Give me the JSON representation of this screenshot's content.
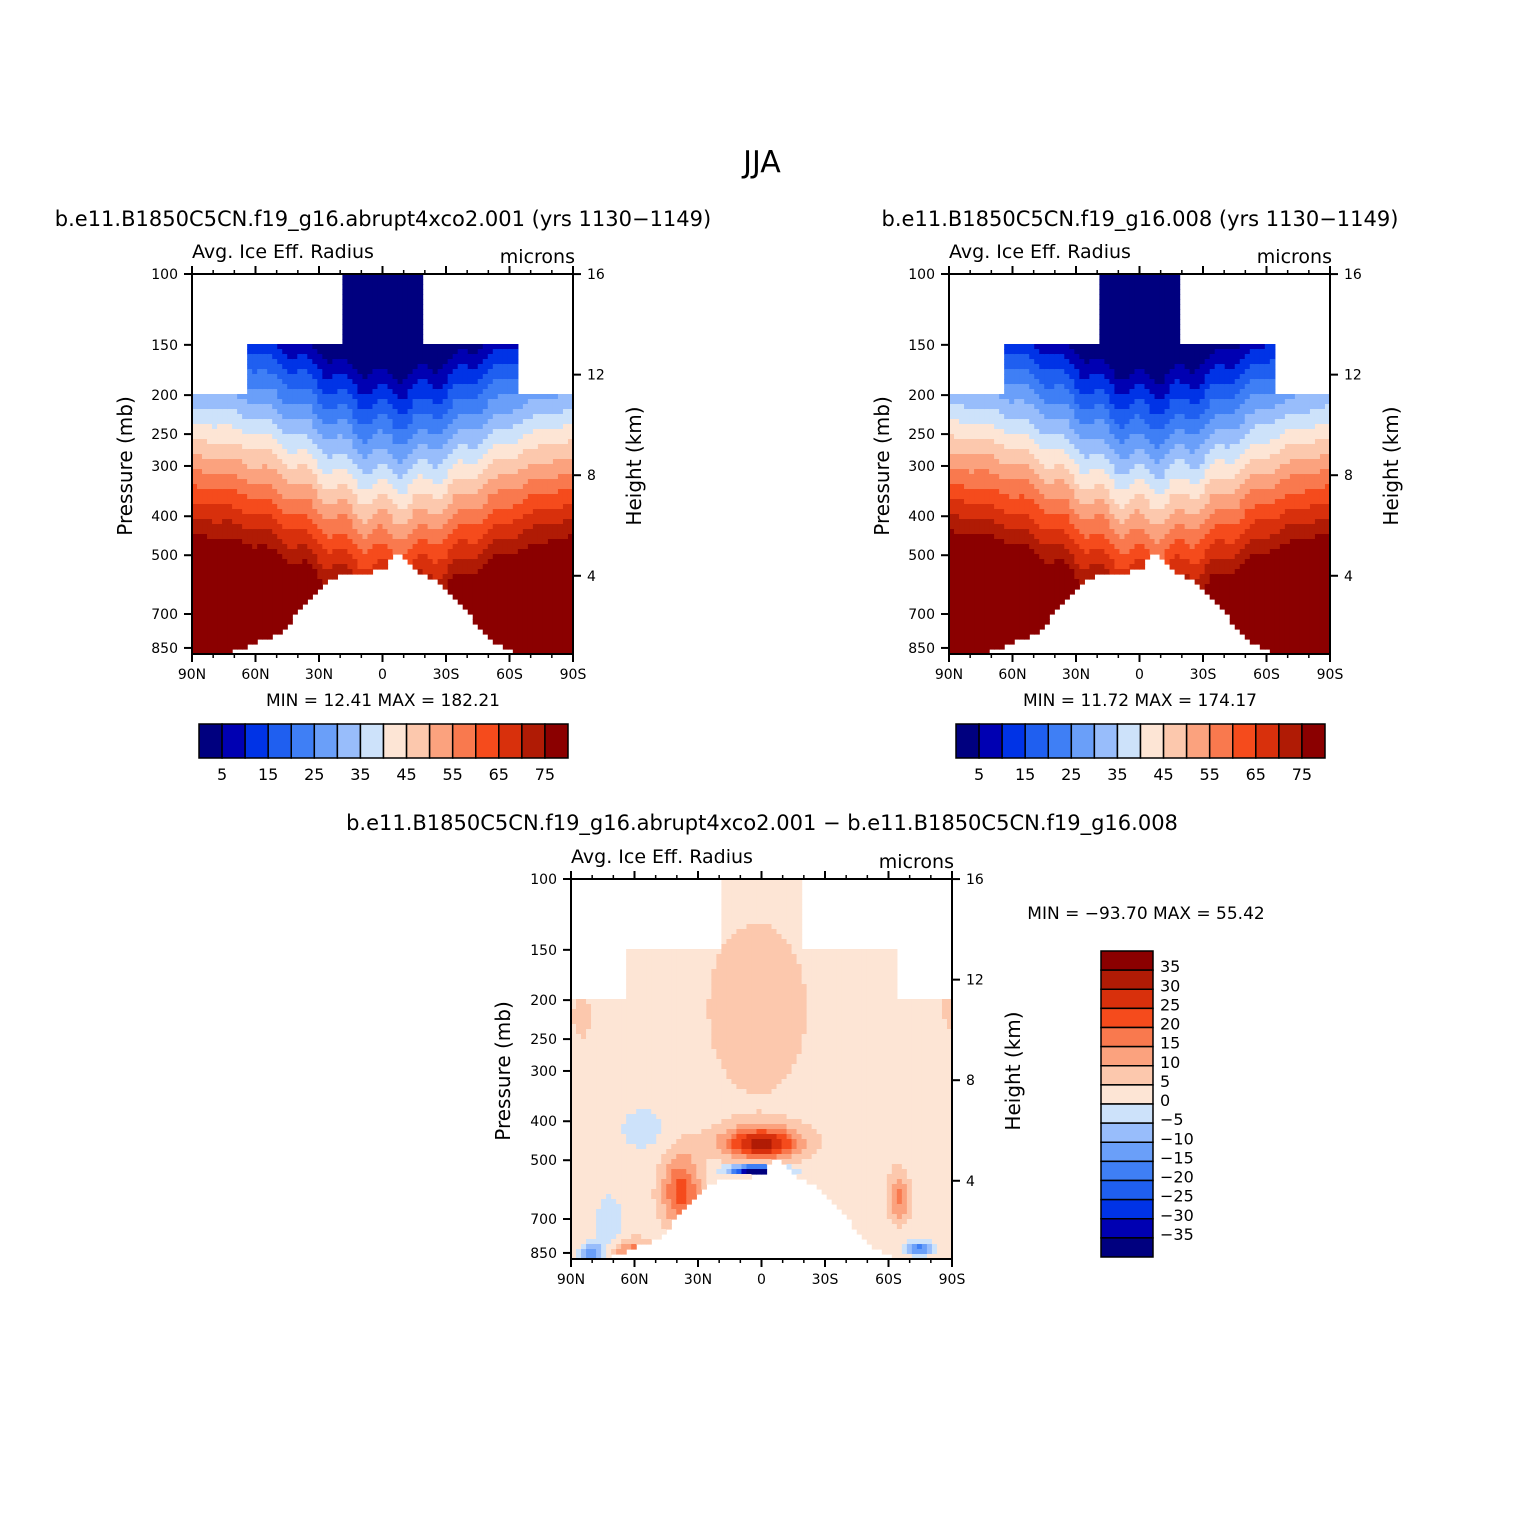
{
  "figure": {
    "title": "JJA",
    "colormap": [
      "#00007f",
      "#0000b2",
      "#0033e6",
      "#1f5ff0",
      "#3f7ff5",
      "#6a9ff9",
      "#98bdfb",
      "#cde2fa",
      "#fde5d5",
      "#fcc8ad",
      "#fba27e",
      "#f9794e",
      "#f54b1c",
      "#d8300c",
      "#b01b05",
      "#8b0000"
    ]
  },
  "chart_data": [
    {
      "type": "heatmap",
      "id": "case1",
      "header": "b.e11.B1850C5CN.f19_g16.abrupt4xco2.001 (yrs 1130−1149)",
      "title": "Avg. Ice Eff. Radius",
      "units": "microns",
      "ylabel": "Pressure (mb)",
      "ylabel_right": "Height (km)",
      "x_ticks": [
        "90N",
        "60N",
        "30N",
        "0",
        "30S",
        "60S",
        "90S"
      ],
      "y_ticks": [
        "100",
        "150",
        "200",
        "250",
        "300",
        "400",
        "500",
        "700",
        "850"
      ],
      "y_right_ticks": [
        "16",
        "12",
        "8",
        "4"
      ],
      "minmax": "MIN =   12.41   MAX =  182.21",
      "colorbar_labels": [
        "5",
        "15",
        "25",
        "35",
        "45",
        "55",
        "65",
        "75"
      ],
      "levels": [
        5,
        10,
        15,
        20,
        25,
        30,
        35,
        40,
        45,
        50,
        55,
        60,
        65,
        70,
        75
      ],
      "min": 12.41,
      "max": 182.21
    },
    {
      "type": "heatmap",
      "id": "case2",
      "header": "b.e11.B1850C5CN.f19_g16.008 (yrs 1130−1149)",
      "title": "Avg. Ice Eff. Radius",
      "units": "microns",
      "ylabel": "Pressure (mb)",
      "ylabel_right": "Height (km)",
      "x_ticks": [
        "90N",
        "60N",
        "30N",
        "0",
        "30S",
        "60S",
        "90S"
      ],
      "y_ticks": [
        "100",
        "150",
        "200",
        "250",
        "300",
        "400",
        "500",
        "700",
        "850"
      ],
      "y_right_ticks": [
        "16",
        "12",
        "8",
        "4"
      ],
      "minmax": "MIN =   11.72   MAX =  174.17",
      "colorbar_labels": [
        "5",
        "15",
        "25",
        "35",
        "45",
        "55",
        "65",
        "75"
      ],
      "levels": [
        5,
        10,
        15,
        20,
        25,
        30,
        35,
        40,
        45,
        50,
        55,
        60,
        65,
        70,
        75
      ],
      "min": 11.72,
      "max": 174.17
    },
    {
      "type": "heatmap",
      "id": "diff",
      "header": "b.e11.B1850C5CN.f19_g16.abrupt4xco2.001 − b.e11.B1850C5CN.f19_g16.008",
      "title": "Avg. Ice Eff. Radius",
      "units": "microns",
      "ylabel": "Pressure (mb)",
      "ylabel_right": "Height (km)",
      "x_ticks": [
        "90N",
        "60N",
        "30N",
        "0",
        "30S",
        "60S",
        "90S"
      ],
      "y_ticks": [
        "100",
        "150",
        "200",
        "250",
        "300",
        "400",
        "500",
        "700",
        "850"
      ],
      "y_right_ticks": [
        "16",
        "12",
        "8",
        "4"
      ],
      "minmax": "MIN = −93.70   MAX =   55.42",
      "colorbar_labels": [
        "35",
        "30",
        "25",
        "20",
        "15",
        "10",
        "5",
        "0",
        "−5",
        "−10",
        "−15",
        "−20",
        "−25",
        "−30",
        "−35"
      ],
      "levels": [
        -35,
        -30,
        -25,
        -20,
        -15,
        -10,
        -5,
        0,
        5,
        10,
        15,
        20,
        25,
        30,
        35
      ],
      "min": -93.7,
      "max": 55.42
    }
  ]
}
